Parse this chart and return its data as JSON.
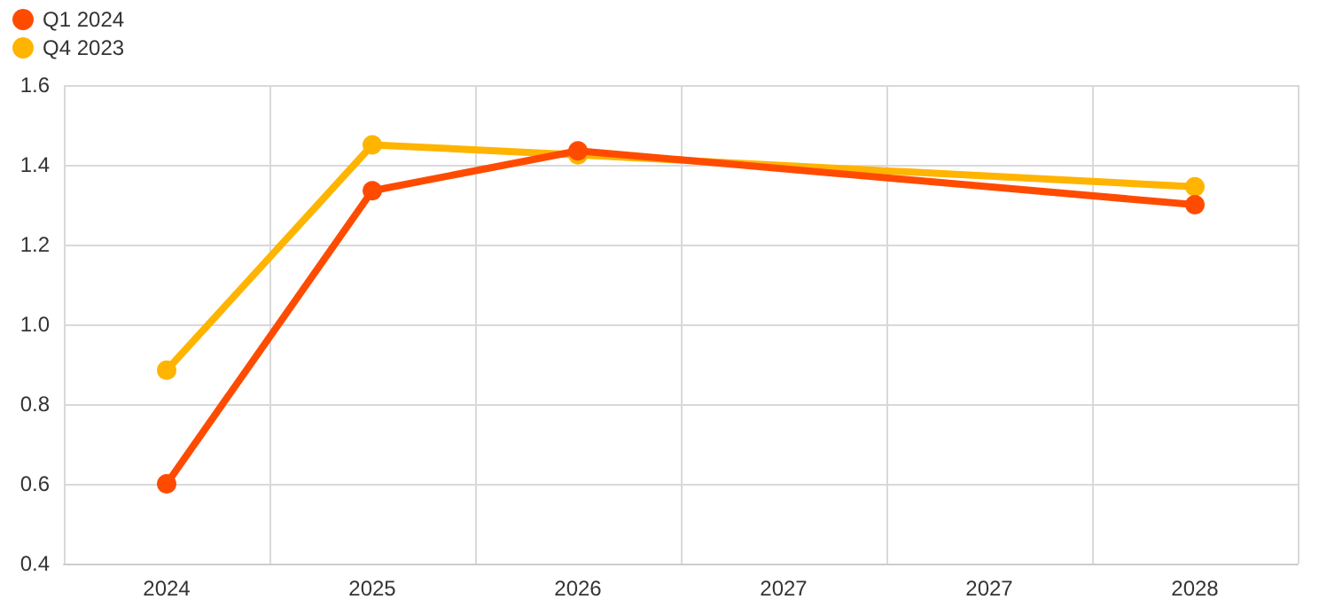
{
  "chart_data": {
    "type": "line",
    "categories": [
      "2024",
      "2025",
      "2026",
      "2027",
      "2027",
      "2028"
    ],
    "series": [
      {
        "name": "Q1 2024",
        "color": "#ff4b00",
        "values": [
          0.6,
          1.335,
          1.435,
          null,
          null,
          1.3
        ]
      },
      {
        "name": "Q4 2023",
        "color": "#ffb400",
        "values": [
          0.885,
          1.45,
          1.425,
          null,
          null,
          1.345
        ]
      }
    ],
    "ylim": [
      0.4,
      1.6
    ],
    "yticks": [
      {
        "value": 0.4,
        "label": "0.4"
      },
      {
        "value": 0.6,
        "label": "0.6"
      },
      {
        "value": 0.8,
        "label": "0.8"
      },
      {
        "value": 1.0,
        "label": "1.0"
      },
      {
        "value": 1.2,
        "label": "1.2"
      },
      {
        "value": 1.4,
        "label": "1.4"
      },
      {
        "value": 1.6,
        "label": "1.6"
      }
    ],
    "grid": true,
    "legend": "top left",
    "marker": "circle",
    "line_style": "solid"
  }
}
